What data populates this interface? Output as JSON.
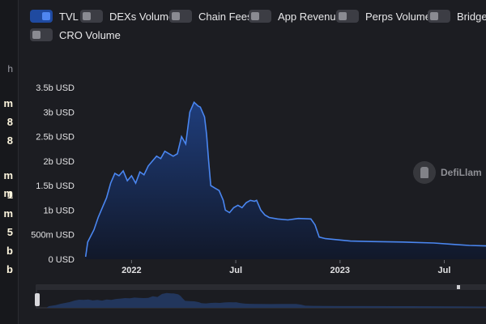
{
  "left_values": [
    {
      "text": "h",
      "style": "gray"
    },
    {
      "text": "m",
      "style": ""
    },
    {
      "text": "8",
      "style": ""
    },
    {
      "text": "8",
      "style": ""
    },
    {
      "text": "m",
      "style": ""
    },
    {
      "text": "m",
      "style": ""
    },
    {
      "text": "1",
      "style": ""
    },
    {
      "text": "m",
      "style": ""
    },
    {
      "text": "5",
      "style": ""
    },
    {
      "text": "b",
      "style": ""
    },
    {
      "text": "b",
      "style": ""
    }
  ],
  "toggles": [
    {
      "label": "TVL",
      "on": true
    },
    {
      "label": "DEXs Volume",
      "on": false
    },
    {
      "label": "Chain Fees",
      "on": false
    },
    {
      "label": "App Revenue",
      "on": false
    },
    {
      "label": "Perps Volume",
      "on": false
    },
    {
      "label": "Bridged",
      "on": false
    },
    {
      "label": "CRO Volume",
      "on": false
    }
  ],
  "watermark": {
    "text": "DefiLlam",
    "icon": "llama-logo-icon"
  },
  "colors": {
    "line": "#4a86f0",
    "area_top": "#1f3f80",
    "area_bottom": "#11182a",
    "accent": "#2f6fe6"
  },
  "chart_data": {
    "type": "area",
    "title": "",
    "xlabel": "",
    "ylabel": "",
    "ylim": [
      0,
      3.5
    ],
    "y_unit": "b USD",
    "yticks": [
      "0 USD",
      "500m USD",
      "1b USD",
      "1.5b USD",
      "2b USD",
      "2.5b USD",
      "3b USD",
      "3.5b USD"
    ],
    "xticks": [
      {
        "label": "2022",
        "t": 2022.0
      },
      {
        "label": "Jul",
        "t": 2022.5
      },
      {
        "label": "2023",
        "t": 2023.0
      },
      {
        "label": "Jul",
        "t": 2023.5
      }
    ],
    "xlim": [
      2021.75,
      2023.7
    ],
    "series": [
      {
        "values": [
          [
            2021.78,
            0.05
          ],
          [
            2021.79,
            0.35
          ],
          [
            2021.82,
            0.6
          ],
          [
            2021.84,
            0.85
          ],
          [
            2021.86,
            1.05
          ],
          [
            2021.88,
            1.25
          ],
          [
            2021.9,
            1.55
          ],
          [
            2021.92,
            1.75
          ],
          [
            2021.94,
            1.7
          ],
          [
            2021.96,
            1.8
          ],
          [
            2021.98,
            1.6
          ],
          [
            2022.0,
            1.7
          ],
          [
            2022.02,
            1.55
          ],
          [
            2022.04,
            1.78
          ],
          [
            2022.06,
            1.72
          ],
          [
            2022.08,
            1.9
          ],
          [
            2022.1,
            2.0
          ],
          [
            2022.12,
            2.1
          ],
          [
            2022.14,
            2.05
          ],
          [
            2022.16,
            2.2
          ],
          [
            2022.18,
            2.15
          ],
          [
            2022.2,
            2.1
          ],
          [
            2022.22,
            2.15
          ],
          [
            2022.24,
            2.5
          ],
          [
            2022.26,
            2.35
          ],
          [
            2022.28,
            3.0
          ],
          [
            2022.3,
            3.2
          ],
          [
            2022.32,
            3.12
          ],
          [
            2022.33,
            3.1
          ],
          [
            2022.35,
            2.9
          ],
          [
            2022.36,
            2.55
          ],
          [
            2022.37,
            2.0
          ],
          [
            2022.38,
            1.5
          ],
          [
            2022.4,
            1.45
          ],
          [
            2022.42,
            1.4
          ],
          [
            2022.44,
            1.2
          ],
          [
            2022.45,
            1.0
          ],
          [
            2022.47,
            0.95
          ],
          [
            2022.49,
            1.05
          ],
          [
            2022.51,
            1.1
          ],
          [
            2022.53,
            1.05
          ],
          [
            2022.55,
            1.15
          ],
          [
            2022.57,
            1.2
          ],
          [
            2022.59,
            1.18
          ],
          [
            2022.6,
            1.2
          ],
          [
            2022.62,
            1.0
          ],
          [
            2022.64,
            0.9
          ],
          [
            2022.66,
            0.85
          ],
          [
            2022.7,
            0.82
          ],
          [
            2022.75,
            0.8
          ],
          [
            2022.8,
            0.83
          ],
          [
            2022.86,
            0.82
          ],
          [
            2022.88,
            0.7
          ],
          [
            2022.9,
            0.45
          ],
          [
            2022.93,
            0.42
          ],
          [
            2022.98,
            0.4
          ],
          [
            2023.05,
            0.37
          ],
          [
            2023.15,
            0.36
          ],
          [
            2023.3,
            0.35
          ],
          [
            2023.45,
            0.33
          ],
          [
            2023.55,
            0.3
          ],
          [
            2023.62,
            0.28
          ],
          [
            2023.7,
            0.27
          ]
        ]
      }
    ],
    "grid": false
  }
}
